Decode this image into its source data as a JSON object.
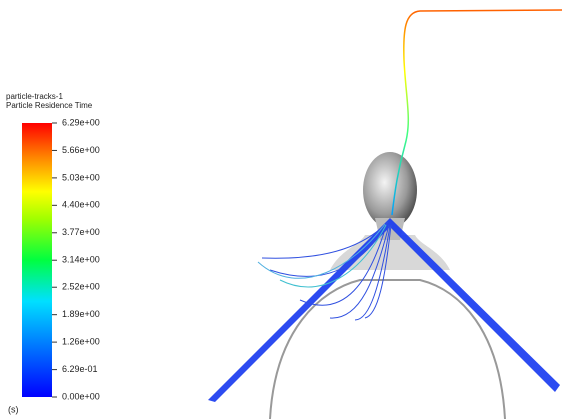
{
  "legend": {
    "title": "particle-tracks-1",
    "subtitle": "Particle Residence Time",
    "ticks": [
      {
        "value": 6.29,
        "label": "6.29e+00"
      },
      {
        "value": 5.66,
        "label": "5.66e+00"
      },
      {
        "value": 5.03,
        "label": "5.03e+00"
      },
      {
        "value": 4.4,
        "label": "4.40e+00"
      },
      {
        "value": 3.77,
        "label": "3.77e+00"
      },
      {
        "value": 3.14,
        "label": "3.14e+00"
      },
      {
        "value": 2.52,
        "label": "2.52e+00"
      },
      {
        "value": 1.89,
        "label": "1.89e+00"
      },
      {
        "value": 1.26,
        "label": "1.26e+00"
      },
      {
        "value": 0.629,
        "label": "6.29e-01"
      },
      {
        "value": 0,
        "label": "0.00e+00"
      }
    ],
    "unit": "(s)"
  }
}
